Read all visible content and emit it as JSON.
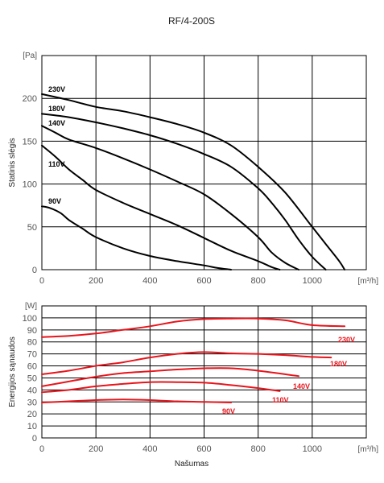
{
  "chart_data": {
    "title": "RF/4-200S",
    "xlabel": "Našumas",
    "x_unit_top": "[m³/h]",
    "x_unit_bottom": "[m³/h]",
    "x_ticks": [
      "0",
      "200",
      "400",
      "600",
      "800",
      "1000"
    ],
    "xlim": [
      0,
      1200
    ],
    "colors": {
      "pressure": "#000000",
      "power": "#e8141b",
      "grid": "#000000"
    },
    "charts": [
      {
        "type": "line",
        "ylabel": "Statinis slėgis",
        "y_unit": "[Pa]",
        "ylim": [
          0,
          250
        ],
        "y_ticks": [
          "0",
          "50",
          "100",
          "150",
          "200"
        ],
        "grid": true,
        "series": [
          {
            "name": "230V",
            "x": [
              0,
              100,
              200,
              300,
              400,
              500,
              600,
              700,
              800,
              900,
              1000,
              1050,
              1100,
              1120
            ],
            "y": [
              205,
              198,
              190,
              185,
              178,
              170,
              160,
              145,
              120,
              90,
              50,
              30,
              10,
              0
            ]
          },
          {
            "name": "180V",
            "x": [
              0,
              100,
              200,
              300,
              400,
              500,
              600,
              700,
              800,
              850,
              900,
              950,
              1000,
              1050
            ],
            "y": [
              182,
              178,
              172,
              165,
              157,
              147,
              135,
              120,
              95,
              78,
              58,
              35,
              15,
              0
            ]
          },
          {
            "name": "140V",
            "x": [
              0,
              50,
              100,
              200,
              300,
              400,
              500,
              600,
              700,
              800,
              850,
              900,
              950
            ],
            "y": [
              168,
              160,
              152,
              142,
              130,
              117,
              103,
              88,
              65,
              38,
              20,
              8,
              0
            ]
          },
          {
            "name": "110V",
            "x": [
              0,
              50,
              100,
              150,
              200,
              300,
              400,
              500,
              600,
              700,
              800,
              850,
              880
            ],
            "y": [
              145,
              132,
              117,
              105,
              93,
              78,
              65,
              52,
              37,
              22,
              10,
              3,
              0
            ]
          },
          {
            "name": "90V",
            "x": [
              0,
              30,
              70,
              100,
              150,
              200,
              300,
              400,
              500,
              600,
              650,
              700
            ],
            "y": [
              74,
              72,
              66,
              58,
              48,
              38,
              25,
              16,
              10,
              5,
              2,
              0
            ]
          }
        ]
      },
      {
        "type": "line",
        "ylabel": "Energijos sąnaudos",
        "y_unit": "[W]",
        "ylim": [
          0,
          110
        ],
        "y_ticks": [
          "0",
          "10",
          "20",
          "30",
          "40",
          "50",
          "60",
          "70",
          "80",
          "90",
          "100"
        ],
        "grid": true,
        "series": [
          {
            "name": "230V",
            "x": [
              0,
              100,
              200,
              300,
              400,
              500,
              600,
              700,
              800,
              900,
              1000,
              1120
            ],
            "y": [
              84,
              85,
              87,
              90,
              93,
              97,
              99,
              99.5,
              99.5,
              98,
              94,
              93
            ]
          },
          {
            "name": "180V",
            "x": [
              0,
              100,
              200,
              300,
              400,
              500,
              600,
              700,
              800,
              900,
              1000,
              1070
            ],
            "y": [
              53,
              56,
              60,
              63,
              67,
              70,
              71.5,
              70.5,
              70,
              69,
              67.5,
              67
            ]
          },
          {
            "name": "140V",
            "x": [
              0,
              100,
              200,
              300,
              400,
              500,
              600,
              700,
              800,
              950
            ],
            "y": [
              43,
              47,
              51,
              54,
              55.5,
              57,
              58,
              58,
              56,
              51.5
            ]
          },
          {
            "name": "110V",
            "x": [
              0,
              100,
              200,
              300,
              400,
              500,
              600,
              700,
              800,
              880
            ],
            "y": [
              38,
              40,
              43,
              45,
              46.5,
              46.5,
              46,
              44,
              41.5,
              39
            ]
          },
          {
            "name": "90V",
            "x": [
              0,
              100,
              200,
              300,
              400,
              500,
              600,
              700
            ],
            "y": [
              29.5,
              30.5,
              31.5,
              32,
              31.5,
              30.5,
              30,
              29.5
            ]
          }
        ]
      }
    ]
  }
}
